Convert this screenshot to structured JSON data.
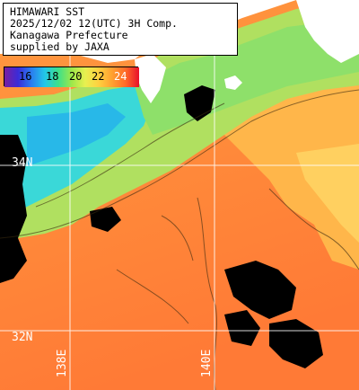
{
  "caption": {
    "line1": "HIMAWARI SST",
    "line2": "2025/12/02 12(UTC) 3H Comp.",
    "line3": "Kanagawa Prefecture",
    "line4": "supplied by JAXA"
  },
  "colorbar": {
    "ticks": [
      "16",
      "18",
      "20",
      "22",
      "24"
    ],
    "stops": [
      "#7b1fa0",
      "#3b2bd8",
      "#2a7df0",
      "#22c7e8",
      "#3ee08a",
      "#9ee84a",
      "#e8f050",
      "#ffd040",
      "#ffa030",
      "#ff6a28",
      "#e8102a"
    ]
  },
  "grid_labels": {
    "lat_34": "34N",
    "lat_32": "32N",
    "lon_138": "138E",
    "lon_140": "140E"
  },
  "colors": {
    "land": "#ffffff",
    "cloud": "#000000",
    "grid": "#ffffff",
    "sst_cold": "#2fd0e0",
    "sst_cool": "#7fe06a",
    "sst_mid": "#e0e850",
    "sst_warm": "#ffb040",
    "sst_hot": "#ff7a38"
  }
}
